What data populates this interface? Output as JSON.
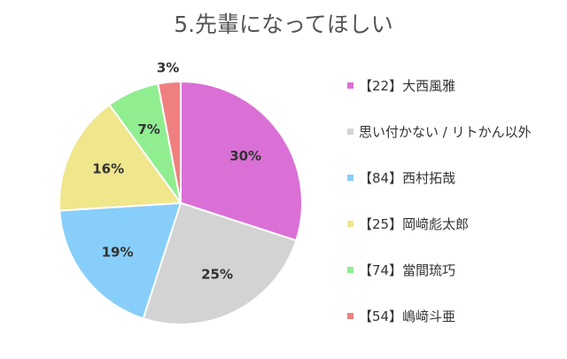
{
  "chart_data": {
    "type": "pie",
    "title": "5.先輩になってほしい",
    "categories": [
      "【22】大西風雅",
      "思い付かない / リトかん以外",
      "【84】西村拓哉",
      "【25】岡﨑彪太郎",
      "【74】當間琉巧",
      "【54】嶋﨑斗亜"
    ],
    "values": [
      30,
      25,
      19,
      16,
      7,
      3
    ],
    "value_labels": [
      "30%",
      "25%",
      "19%",
      "16%",
      "7%",
      "3%"
    ],
    "colors": [
      "#da70d6",
      "#d3d3d3",
      "#87cefa",
      "#f0e68c",
      "#90ee90",
      "#f08080"
    ],
    "legend_position": "right"
  }
}
